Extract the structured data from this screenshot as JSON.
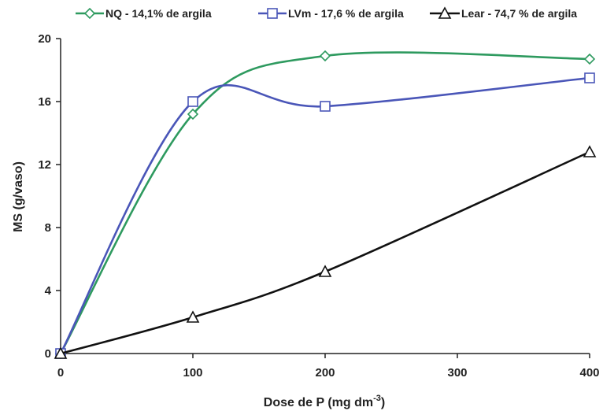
{
  "chart_data": {
    "type": "line",
    "title": "",
    "xlabel": "Dose de P (mg dm",
    "xlabel_sup": "-3",
    "xlabel_end": ")",
    "ylabel": "MS (g/vaso)",
    "xlim": [
      0,
      400
    ],
    "ylim": [
      0,
      20
    ],
    "x_ticks": [
      "0",
      "100",
      "200",
      "300",
      "400"
    ],
    "y_ticks": [
      "0",
      "4",
      "8",
      "12",
      "16",
      "20"
    ],
    "grid": false,
    "legend_position": "top",
    "x": [
      0,
      100,
      200,
      400
    ],
    "series": [
      {
        "name": "NQ - 14,1% de argila",
        "values": [
          0,
          15.2,
          18.9,
          18.7
        ],
        "color": "#2e9a5f",
        "marker": "diamond"
      },
      {
        "name": "LVm - 17,6 % de argila",
        "values": [
          0,
          16.0,
          15.7,
          17.5
        ],
        "color": "#4a56b8",
        "marker": "square"
      },
      {
        "name": "Lear - 74,7 % de argila",
        "values": [
          0,
          2.3,
          5.2,
          12.8
        ],
        "color": "#111111",
        "marker": "triangle"
      }
    ]
  }
}
